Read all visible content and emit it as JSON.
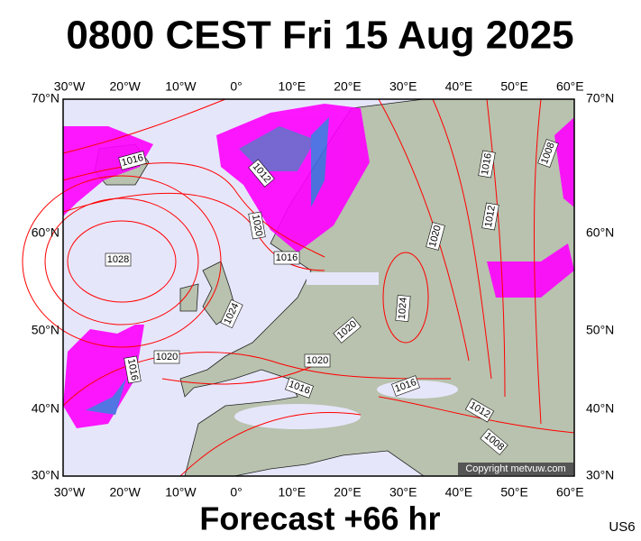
{
  "header": {
    "title": "0800 CEST Fri 15 Aug 2025"
  },
  "map": {
    "lon_labels": [
      "30°W",
      "20°W",
      "10°W",
      "0°",
      "10°E",
      "20°E",
      "30°E",
      "40°E",
      "50°E",
      "60°E"
    ],
    "lat_labels": [
      "70°N",
      "60°N",
      "50°N",
      "40°N",
      "30°N"
    ],
    "isobar_labels": [
      "1016",
      "1012",
      "1020",
      "1016",
      "1028",
      "1024",
      "1020",
      "1016",
      "1020",
      "1020",
      "1016",
      "1016",
      "1024",
      "1020",
      "1012",
      "1016",
      "1008",
      "1012",
      "1008"
    ],
    "copyright": "Copyright metvuw.com"
  },
  "footer": {
    "forecast": "Forecast +66 hr",
    "code": "US6"
  }
}
